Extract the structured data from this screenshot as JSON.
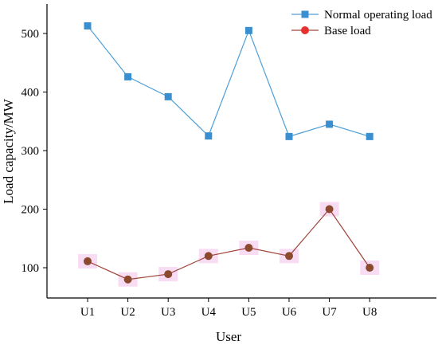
{
  "chart_data": {
    "type": "line",
    "title": "",
    "xlabel": "User",
    "ylabel": "Load capacity/MW",
    "categories": [
      "U1",
      "U2",
      "U3",
      "U4",
      "U5",
      "U6",
      "U7",
      "U8"
    ],
    "ylim": [
      0,
      550
    ],
    "yticks": [
      100,
      200,
      300,
      400,
      500
    ],
    "grid": false,
    "legend_position": "top-right",
    "series": [
      {
        "name": "Normal operating load",
        "marker": "square",
        "color": "#3a8fd0",
        "line_color": "#4d9fd6",
        "values": [
          513,
          426,
          392,
          325,
          505,
          324,
          345,
          324
        ]
      },
      {
        "name": "Base load",
        "marker": "circle",
        "color": "#e8312f",
        "line_color": "#a0443a",
        "point_color": "#8b4a2e",
        "halo_color": "#f5cdf0",
        "values": [
          111,
          80,
          89,
          120,
          134,
          120,
          200,
          100
        ]
      }
    ]
  }
}
